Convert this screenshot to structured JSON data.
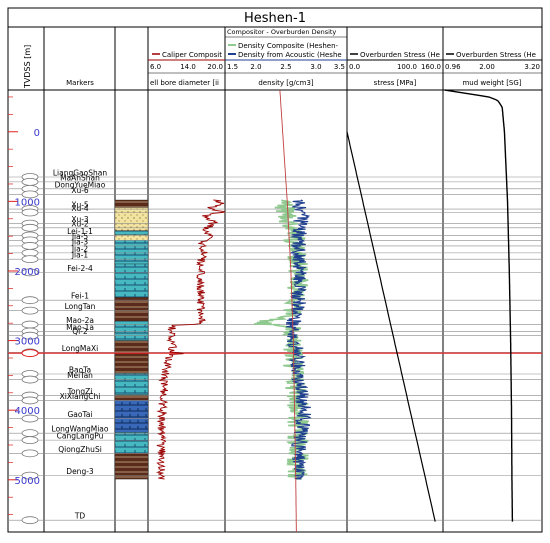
{
  "title": "Heshen-1",
  "depth_track": {
    "label": "TVDSS [m]",
    "ticks": [
      0,
      1000,
      2000,
      3000,
      4000,
      5000
    ],
    "range": [
      -600,
      5750
    ]
  },
  "markers_track": {
    "header": "Markers",
    "markers": [
      {
        "name": "LiangGaoShan",
        "depth": 650
      },
      {
        "name": "MaAnShan",
        "depth": 720
      },
      {
        "name": "DongYueMiao",
        "depth": 820
      },
      {
        "name": "Xu-6",
        "depth": 900
      },
      {
        "name": "Xu-5",
        "depth": 1110
      },
      {
        "name": "Xu-4",
        "depth": 1160
      },
      {
        "name": "Xu-3",
        "depth": 1320
      },
      {
        "name": "Xu-2",
        "depth": 1380
      },
      {
        "name": "Lei-1-1",
        "depth": 1490
      },
      {
        "name": "Jia-5",
        "depth": 1560
      },
      {
        "name": "Jia-3",
        "depth": 1640
      },
      {
        "name": "Jia-2",
        "depth": 1740
      },
      {
        "name": "Jia-1",
        "depth": 1830
      },
      {
        "name": "Fei-2-4",
        "depth": 2020
      },
      {
        "name": "Fei-1",
        "depth": 2420
      },
      {
        "name": "LongTan",
        "depth": 2570
      },
      {
        "name": "Mao-2a",
        "depth": 2770
      },
      {
        "name": "Mao-1a",
        "depth": 2870
      },
      {
        "name": "Qi-2",
        "depth": 2930
      },
      {
        "name": "LongMaXi",
        "depth": 3170
      },
      {
        "name": "BaoTa",
        "depth": 3480
      },
      {
        "name": "MeiTan",
        "depth": 3560
      },
      {
        "name": "TongZi",
        "depth": 3790
      },
      {
        "name": "XiXiangChi",
        "depth": 3860
      },
      {
        "name": "GaoTai",
        "depth": 4120
      },
      {
        "name": "LongWangMiao",
        "depth": 4330
      },
      {
        "name": "CangLangPu",
        "depth": 4430
      },
      {
        "name": "QiongZhuSi",
        "depth": 4620
      },
      {
        "name": "Deng-3",
        "depth": 4940
      },
      {
        "name": "TD",
        "depth": 5580
      }
    ],
    "highlight_depth": 3180,
    "highlight_color": "#e02020"
  },
  "lith_track": {
    "top": 980,
    "bottom": 4990,
    "beds": [
      {
        "top": 980,
        "bottom": 1090,
        "kind": "dark"
      },
      {
        "top": 1090,
        "bottom": 1420,
        "kind": "sand"
      },
      {
        "top": 1420,
        "bottom": 1480,
        "kind": "lime"
      },
      {
        "top": 1480,
        "bottom": 1560,
        "kind": "sand"
      },
      {
        "top": 1560,
        "bottom": 1900,
        "kind": "lime"
      },
      {
        "top": 1900,
        "bottom": 2380,
        "kind": "lime"
      },
      {
        "top": 2380,
        "bottom": 2720,
        "kind": "dark"
      },
      {
        "top": 2720,
        "bottom": 3000,
        "kind": "lime"
      },
      {
        "top": 3000,
        "bottom": 3180,
        "kind": "dark"
      },
      {
        "top": 3180,
        "bottom": 3470,
        "kind": "dark"
      },
      {
        "top": 3470,
        "bottom": 3780,
        "kind": "lime"
      },
      {
        "top": 3780,
        "bottom": 3860,
        "kind": "dark"
      },
      {
        "top": 3860,
        "bottom": 4320,
        "kind": "blue"
      },
      {
        "top": 4320,
        "bottom": 4620,
        "kind": "lime"
      },
      {
        "top": 4620,
        "bottom": 4990,
        "kind": "dark"
      }
    ]
  },
  "caliper_track": {
    "curve_label": "Caliper Composit",
    "unit_label": "ell bore diameter [ii",
    "scale_min": 6.0,
    "scale_max": 20.0,
    "scale_ticks": [
      "6.0",
      "14.0",
      "20.0"
    ],
    "color": "#9b0000",
    "profile": [
      {
        "depth": 980,
        "value": 18.5
      },
      {
        "depth": 1050,
        "value": 19.5
      },
      {
        "depth": 1100,
        "value": 17.0
      },
      {
        "depth": 1150,
        "value": 20.0
      },
      {
        "depth": 1200,
        "value": 16.5
      },
      {
        "depth": 1300,
        "value": 18.0
      },
      {
        "depth": 1400,
        "value": 16.5
      },
      {
        "depth": 1500,
        "value": 17.5
      },
      {
        "depth": 1600,
        "value": 15.8
      },
      {
        "depth": 1700,
        "value": 16.2
      },
      {
        "depth": 1900,
        "value": 15.6
      },
      {
        "depth": 2200,
        "value": 15.6
      },
      {
        "depth": 2500,
        "value": 15.6
      },
      {
        "depth": 2760,
        "value": 15.6
      },
      {
        "depth": 2780,
        "value": 10.5
      },
      {
        "depth": 2900,
        "value": 10.3
      },
      {
        "depth": 3170,
        "value": 10.5
      },
      {
        "depth": 3180,
        "value": 13.0
      },
      {
        "depth": 3200,
        "value": 10.0
      },
      {
        "depth": 3500,
        "value": 9.0
      },
      {
        "depth": 4000,
        "value": 8.6
      },
      {
        "depth": 4500,
        "value": 8.4
      },
      {
        "depth": 4990,
        "value": 8.5
      }
    ]
  },
  "density_track": {
    "header_line": "Compositor - Overburden Density",
    "legend": [
      {
        "label": "Density Composite (Heshen-",
        "color": "#8fc98f"
      },
      {
        "label": "Density from Acoustic (Heshe",
        "color": "#1f3f8f"
      }
    ],
    "unit_label": "density [g/cm3]",
    "scale_min": 1.5,
    "scale_max": 3.5,
    "scale_ticks": [
      "1.5",
      "2.0",
      "2.5",
      "3.0",
      "3.5"
    ],
    "overburden_color": "#c04040",
    "composite_profile": [
      {
        "depth": 980,
        "value": 2.4
      },
      {
        "depth": 1150,
        "value": 2.5
      },
      {
        "depth": 1400,
        "value": 2.6
      },
      {
        "depth": 1800,
        "value": 2.7
      },
      {
        "depth": 2200,
        "value": 2.7
      },
      {
        "depth": 2600,
        "value": 2.65
      },
      {
        "depth": 2760,
        "value": 2.1
      },
      {
        "depth": 2800,
        "value": 2.6
      },
      {
        "depth": 3200,
        "value": 2.6
      },
      {
        "depth": 3600,
        "value": 2.65
      },
      {
        "depth": 4000,
        "value": 2.7
      },
      {
        "depth": 4500,
        "value": 2.7
      },
      {
        "depth": 4990,
        "value": 2.68
      }
    ],
    "acoustic_profile": [
      {
        "depth": 980,
        "value": 2.7
      },
      {
        "depth": 1200,
        "value": 2.75
      },
      {
        "depth": 1600,
        "value": 2.7
      },
      {
        "depth": 2000,
        "value": 2.72
      },
      {
        "depth": 2500,
        "value": 2.7
      },
      {
        "depth": 2800,
        "value": 2.6
      },
      {
        "depth": 3200,
        "value": 2.68
      },
      {
        "depth": 3600,
        "value": 2.72
      },
      {
        "depth": 4000,
        "value": 2.8
      },
      {
        "depth": 4500,
        "value": 2.72
      },
      {
        "depth": 4990,
        "value": 2.7
      }
    ],
    "overburden_profile": [
      {
        "depth": -600,
        "value": 2.4
      },
      {
        "depth": 1000,
        "value": 2.52
      },
      {
        "depth": 2000,
        "value": 2.58
      },
      {
        "depth": 3000,
        "value": 2.62
      },
      {
        "depth": 4000,
        "value": 2.64
      },
      {
        "depth": 5000,
        "value": 2.66
      },
      {
        "depth": 5750,
        "value": 2.67
      }
    ]
  },
  "stress_track": {
    "curve_label": "Overburden Stress (He",
    "unit_label": "stress [MPa]",
    "scale_min": 0.0,
    "scale_max": 160.0,
    "scale_ticks": [
      "0.0",
      "100.0",
      "160.0"
    ],
    "color": "#000000",
    "profile": [
      {
        "depth": 0,
        "value": 0
      },
      {
        "depth": 5600,
        "value": 147
      }
    ]
  },
  "mudweight_track": {
    "curve_label": "Overburden Stress (He",
    "unit_label": "mud weight [SG]",
    "scale_min": 0.96,
    "scale_max": 3.2,
    "scale_ticks": [
      "0.96",
      "2.00",
      "3.20"
    ],
    "color": "#000000",
    "profile": [
      {
        "depth": -600,
        "value": 1.0
      },
      {
        "depth": -500,
        "value": 2.0
      },
      {
        "depth": -450,
        "value": 2.2
      },
      {
        "depth": -350,
        "value": 2.3
      },
      {
        "depth": 0,
        "value": 2.35
      },
      {
        "depth": 1000,
        "value": 2.42
      },
      {
        "depth": 2000,
        "value": 2.46
      },
      {
        "depth": 3000,
        "value": 2.49
      },
      {
        "depth": 4000,
        "value": 2.51
      },
      {
        "depth": 5000,
        "value": 2.52
      },
      {
        "depth": 5600,
        "value": 2.53
      }
    ]
  }
}
